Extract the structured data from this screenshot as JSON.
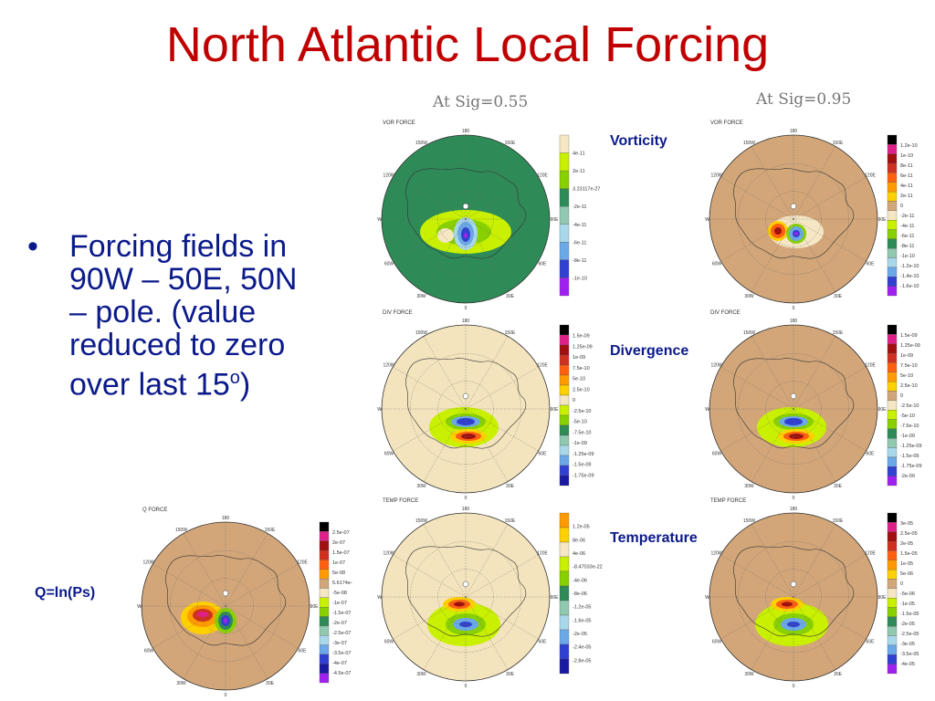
{
  "slide": {
    "title": "North Atlantic Local Forcing",
    "sig_left": "At Sig=0.55",
    "sig_right": "At Sig=0.95",
    "bullet": {
      "line1": "Forcing fields in",
      "line2": "90W – 50E, 50N",
      "line3": "– pole. (value",
      "line4": "reduced to zero",
      "line5_pre": "over last 15",
      "line5_sup": "o",
      "line5_post": ")"
    },
    "labels": {
      "vorticity": "Vorticity",
      "divergence": "Divergence",
      "temperature": "Temperature",
      "q": "Q=ln(Ps)"
    }
  },
  "colors": {
    "title": "#c00000",
    "label": "#0b1a8a",
    "dark_green": "#2e8b57",
    "tan": "#d2a679",
    "cream": "#f3e4bd"
  },
  "lon_labels": [
    "180",
    "150E",
    "120E",
    "90E",
    "60E",
    "30E",
    "0",
    "30W",
    "60W",
    "90W",
    "120W",
    "150W"
  ],
  "panels": [
    {
      "id": "vor55",
      "title": "VOR FORCE",
      "background": "#2e8b57",
      "field_type": "green",
      "legend_colors": [
        "#f5e6c4",
        "#c8f000",
        "#88d000",
        "#2e8b57",
        "#90c8b0",
        "#a8d8ea",
        "#6aa8e8",
        "#3040d0",
        "#a020f0"
      ],
      "legend_labels": [
        "4e-11",
        "2e-11",
        "3.23117e-27",
        "-2e-11",
        "-4e-11",
        "-6e-11",
        "-8e-11",
        "-1e-10"
      ]
    },
    {
      "id": "vor95",
      "title": "VOR FORCE",
      "background": "#d2a679",
      "field_type": "dipole_small",
      "legend_colors": [
        "#000000",
        "#e0208a",
        "#a01010",
        "#d03020",
        "#ff6010",
        "#ff9a00",
        "#ffd000",
        "#d2a679",
        "#f5e6c4",
        "#c8f000",
        "#88d000",
        "#2e8b57",
        "#90c8b0",
        "#a8d8ea",
        "#6aa8e8",
        "#3040d0",
        "#a020f0"
      ],
      "legend_labels": [
        "1.2e-10",
        "1e-10",
        "8e-11",
        "6e-11",
        "4e-11",
        "2e-11",
        "0",
        "-2e-11",
        "-4e-11",
        "-6e-11",
        "-8e-11",
        "-1e-10",
        "-1.2e-10",
        "-1.4e-10",
        "-1.6e-10"
      ]
    },
    {
      "id": "div55",
      "title": "DIV FORCE",
      "background": "#f3e4bd",
      "field_type": "blue_over_red",
      "legend_colors": [
        "#000000",
        "#e0208a",
        "#a01010",
        "#d03020",
        "#ff6010",
        "#ff9a00",
        "#ffd000",
        "#f5e6c4",
        "#c8f000",
        "#88d000",
        "#2e8b57",
        "#90c8b0",
        "#a8d8ea",
        "#6aa8e8",
        "#3040d0",
        "#1a1aa0"
      ],
      "legend_labels": [
        "1.5e-09",
        "1.25e-09",
        "1e-09",
        "7.5e-10",
        "5e-10",
        "2.5e-10",
        "0",
        "-2.5e-10",
        "-5e-10",
        "-7.5e-10",
        "-1e-09",
        "-1.25e-09",
        "-1.5e-09",
        "-1.75e-09"
      ]
    },
    {
      "id": "div95",
      "title": "DIV FORCE",
      "background": "#d2a679",
      "field_type": "blue_over_red",
      "legend_colors": [
        "#000000",
        "#e0208a",
        "#a01010",
        "#d03020",
        "#ff6010",
        "#ff9a00",
        "#ffd000",
        "#d2a679",
        "#f5e6c4",
        "#c8f000",
        "#88d000",
        "#2e8b57",
        "#90c8b0",
        "#a8d8ea",
        "#6aa8e8",
        "#3040d0",
        "#a020f0"
      ],
      "legend_labels": [
        "1.5e-09",
        "1.25e-09",
        "1e-09",
        "7.5e-10",
        "5e-10",
        "2.5e-10",
        "0",
        "-2.5e-10",
        "-5e-10",
        "-7.5e-10",
        "-1e-09",
        "-1.25e-09",
        "-1.5e-09",
        "-1.75e-09",
        "-2e-09"
      ]
    },
    {
      "id": "q95",
      "title": "Q FORCE",
      "background": "#d2a679",
      "field_type": "red_yellow_blue",
      "legend_colors": [
        "#000000",
        "#e0208a",
        "#a01010",
        "#d03020",
        "#ff6010",
        "#ff9a00",
        "#d2a679",
        "#f5e6c4",
        "#c8f000",
        "#88d000",
        "#2e8b57",
        "#90c8b0",
        "#a8d8ea",
        "#6aa8e8",
        "#3040d0",
        "#1a1aa0",
        "#a020f0"
      ],
      "legend_labels": [
        "2.5e-07",
        "2e-07",
        "1.5e-07",
        "1e-07",
        "5e-08",
        "5.6174e-",
        "-5e-08",
        "-1e-07",
        "-1.5e-07",
        "-2e-07",
        "-2.5e-07",
        "-3e-07",
        "-3.5e-07",
        "-4e-07",
        "-4.5e-07"
      ]
    },
    {
      "id": "temp55",
      "title": "TEMP FORCE",
      "background": "#f3e4bd",
      "field_type": "red_over_green",
      "legend_colors": [
        "#ff9a00",
        "#ffd000",
        "#f5e6c4",
        "#c8f000",
        "#88d000",
        "#2e8b57",
        "#90c8b0",
        "#a8d8ea",
        "#6aa8e8",
        "#3040d0",
        "#1a1aa0"
      ],
      "legend_labels": [
        "1.2e-05",
        "8e-06",
        "4e-06",
        "-8.47033e-22",
        "-4e-06",
        "-8e-06",
        "-1.2e-05",
        "-1.6e-05",
        "-2e-05",
        "-2.4e-05",
        "-2.8e-05"
      ]
    },
    {
      "id": "temp95",
      "title": "TEMP FORCE",
      "background": "#d2a679",
      "field_type": "red_over_green",
      "legend_colors": [
        "#000000",
        "#e0208a",
        "#a01010",
        "#d03020",
        "#ff6010",
        "#ff9a00",
        "#ffd000",
        "#d2a679",
        "#f5e6c4",
        "#c8f000",
        "#88d000",
        "#2e8b57",
        "#90c8b0",
        "#a8d8ea",
        "#6aa8e8",
        "#3040d0",
        "#a020f0"
      ],
      "legend_labels": [
        "3e-05",
        "2.5e-05",
        "2e-05",
        "1.5e-05",
        "1e-05",
        "5e-06",
        "0",
        "-5e-06",
        "-1e-05",
        "-1.5e-05",
        "-2e-05",
        "-2.5e-05",
        "-3e-05",
        "-3.5e-05",
        "-4e-05"
      ]
    }
  ]
}
